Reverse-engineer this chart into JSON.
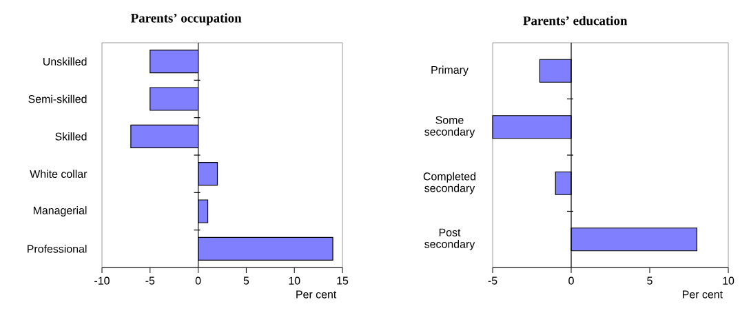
{
  "chart_data": [
    {
      "type": "bar",
      "orientation": "horizontal",
      "title": "Parents’ occupation",
      "xlabel": "Per cent",
      "categories": [
        "Unskilled",
        "Semi-skilled",
        "Skilled",
        "White collar",
        "Managerial",
        "Professional"
      ],
      "values": [
        -5,
        -5,
        -7,
        2,
        1,
        14
      ],
      "color": "#8080ff",
      "xlim": [
        -10,
        15
      ],
      "xticks": [
        -10,
        -5,
        0,
        5,
        10,
        15
      ]
    },
    {
      "type": "bar",
      "orientation": "horizontal",
      "title": "Parents’ education",
      "xlabel": "Per cent",
      "categories": [
        "Primary",
        "Some secondary",
        "Completed secondary",
        "Post secondary"
      ],
      "values": [
        -2,
        -5,
        -1,
        8
      ],
      "color": "#8080ff",
      "xlim": [
        -5,
        10
      ],
      "xticks": [
        -5,
        0,
        5,
        10
      ]
    }
  ]
}
